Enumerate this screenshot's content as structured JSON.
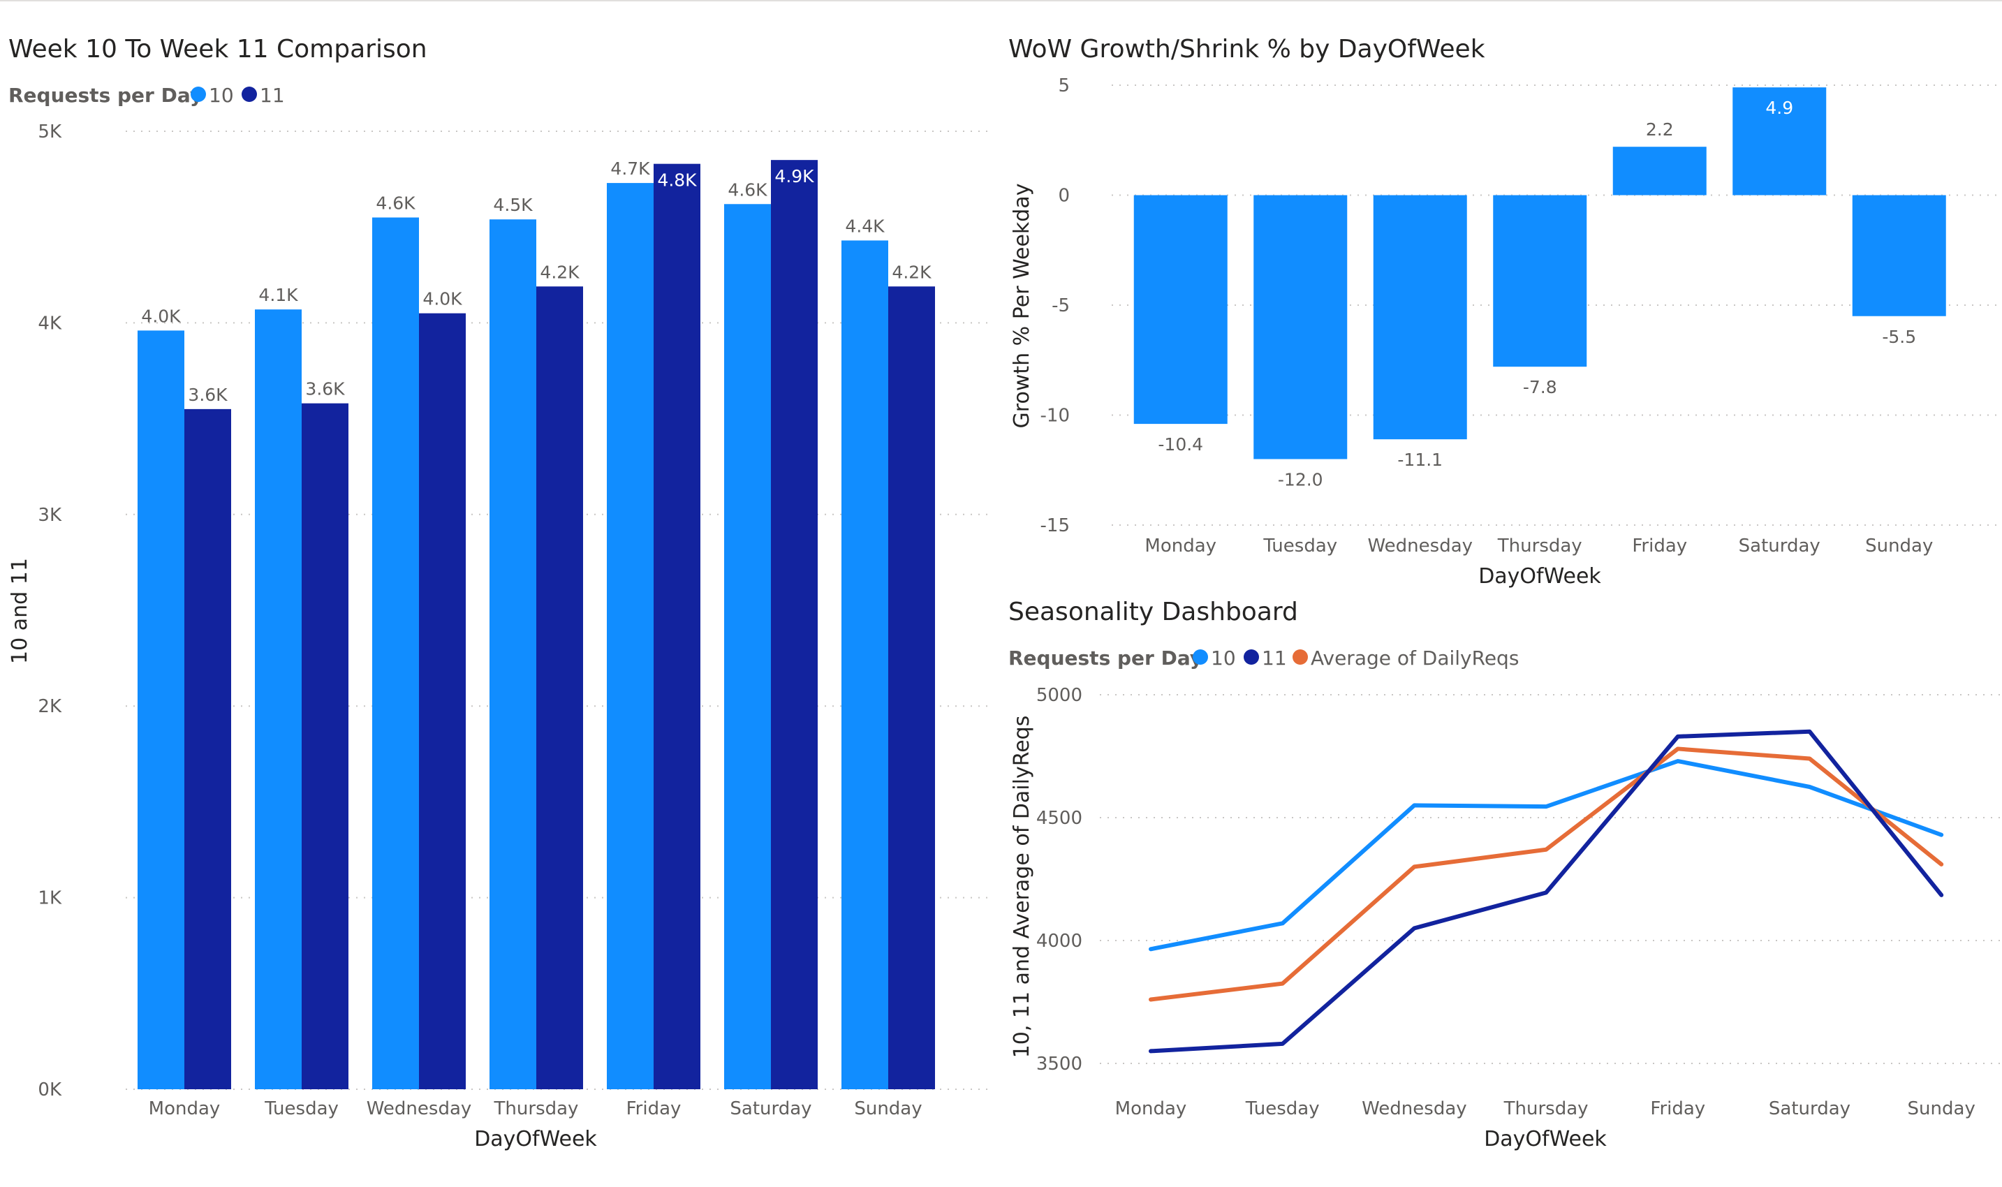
{
  "colors": {
    "w10": "#118dff",
    "w11": "#12239e",
    "avg": "#e66c37"
  },
  "chart_data": [
    {
      "type": "bar",
      "title": "Week 10 To Week 11 Comparison",
      "legend_title": "Requests per Day",
      "xlabel": "DayOfWeek",
      "ylabel": "10 and 11",
      "ylim": [
        0,
        5000
      ],
      "yticks": [
        "0K",
        "1K",
        "2K",
        "3K",
        "4K",
        "5K"
      ],
      "categories": [
        "Monday",
        "Tuesday",
        "Wednesday",
        "Thursday",
        "Friday",
        "Saturday",
        "Sunday"
      ],
      "series": [
        {
          "name": "10",
          "values": [
            3960,
            4070,
            4550,
            4540,
            4730,
            4620,
            4430
          ],
          "labels": [
            "4.0K",
            "4.1K",
            "4.6K",
            "4.5K",
            "4.7K",
            "4.6K",
            "4.4K"
          ]
        },
        {
          "name": "11",
          "values": [
            3550,
            3580,
            4050,
            4190,
            4830,
            4850,
            4190
          ],
          "labels": [
            "3.6K",
            "3.6K",
            "4.0K",
            "4.2K",
            "4.8K",
            "4.9K",
            "4.2K"
          ]
        }
      ],
      "grid": true,
      "legend_position": "top-left"
    },
    {
      "type": "bar",
      "title": "WoW Growth/Shrink % by DayOfWeek",
      "xlabel": "DayOfWeek",
      "ylabel": "Growth % Per Weekday",
      "ylim": [
        -15,
        5
      ],
      "yticks": [
        "-15",
        "-10",
        "-5",
        "0",
        "5"
      ],
      "categories": [
        "Monday",
        "Tuesday",
        "Wednesday",
        "Thursday",
        "Friday",
        "Saturday",
        "Sunday"
      ],
      "values": [
        -10.4,
        -12.0,
        -11.1,
        -7.8,
        2.2,
        4.9,
        -5.5
      ],
      "labels": [
        "-10.4",
        "-12.0",
        "-11.1",
        "-7.8",
        "2.2",
        "4.9",
        "-5.5"
      ],
      "grid": true
    },
    {
      "type": "line",
      "title": "Seasonality Dashboard",
      "legend_title": "Requests per Day",
      "xlabel": "DayOfWeek",
      "ylabel": "10, 11 and Average of DailyReqs",
      "ylim": [
        3500,
        5000
      ],
      "yticks": [
        "3500",
        "4000",
        "4500",
        "5000"
      ],
      "categories": [
        "Monday",
        "Tuesday",
        "Wednesday",
        "Thursday",
        "Friday",
        "Saturday",
        "Sunday"
      ],
      "series": [
        {
          "name": "10",
          "values": [
            3965,
            4070,
            4550,
            4545,
            4730,
            4625,
            4430
          ]
        },
        {
          "name": "11",
          "values": [
            3550,
            3580,
            4050,
            4195,
            4830,
            4850,
            4185
          ]
        },
        {
          "name": "Average of DailyReqs",
          "values": [
            3760,
            3825,
            4300,
            4370,
            4780,
            4740,
            4310
          ]
        }
      ],
      "grid": true,
      "legend_position": "top-left"
    }
  ]
}
